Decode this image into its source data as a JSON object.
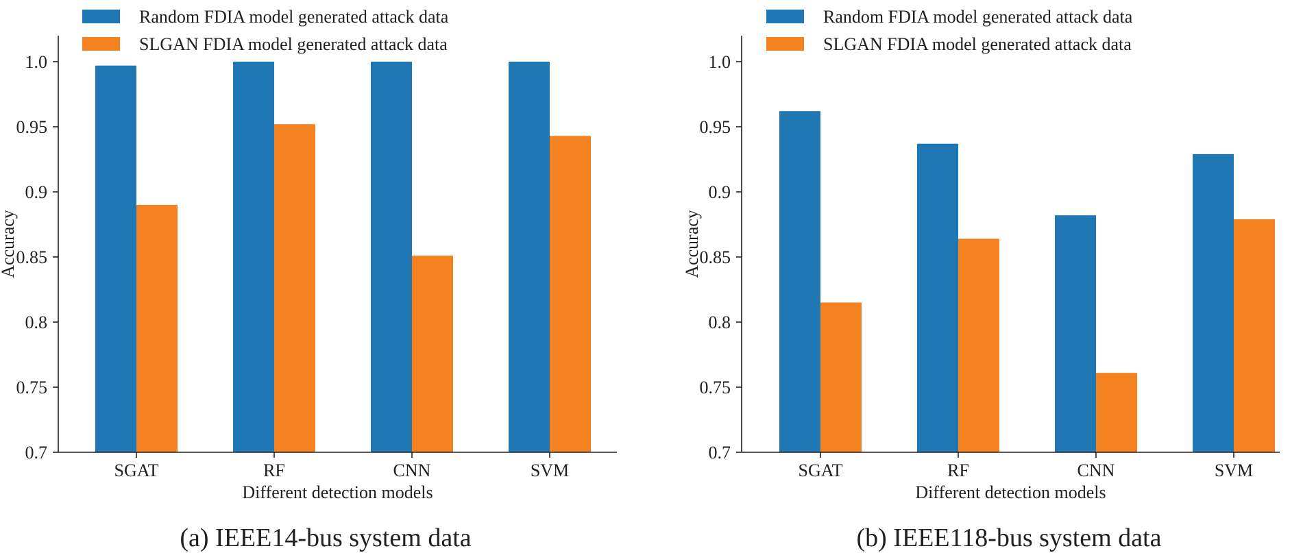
{
  "colors": {
    "random": "#1f77b4",
    "slgan": "#f58220",
    "text": "#231f20"
  },
  "chart_data": [
    {
      "type": "bar",
      "caption": "(a) IEEE14-bus system data",
      "xlabel": "Different detection models",
      "ylabel": "Accuracy",
      "ylim": [
        0.7,
        1.02
      ],
      "yticks": [
        {
          "value": 0.7,
          "label": "0.7"
        },
        {
          "value": 0.75,
          "label": "0.75"
        },
        {
          "value": 0.8,
          "label": "0.8"
        },
        {
          "value": 0.85,
          "label": "0.85"
        },
        {
          "value": 0.9,
          "label": "0.9"
        },
        {
          "value": 0.95,
          "label": "0.95"
        },
        {
          "value": 1.0,
          "label": "1.0"
        }
      ],
      "categories": [
        "SGAT",
        "RF",
        "CNN",
        "SVM"
      ],
      "legend_position": "top-left",
      "series": [
        {
          "name": "Random FDIA model generated attack data",
          "color_key": "random",
          "values": [
            0.997,
            1.0,
            1.0,
            1.0
          ]
        },
        {
          "name": "SLGAN FDIA model generated attack data",
          "color_key": "slgan",
          "values": [
            0.89,
            0.952,
            0.851,
            0.943
          ]
        }
      ]
    },
    {
      "type": "bar",
      "caption": "(b) IEEE118-bus system data",
      "xlabel": "Different detection models",
      "ylabel": "Accuracy",
      "ylim": [
        0.7,
        1.02
      ],
      "yticks": [
        {
          "value": 0.7,
          "label": "0.7"
        },
        {
          "value": 0.75,
          "label": "0.75"
        },
        {
          "value": 0.8,
          "label": "0.8"
        },
        {
          "value": 0.85,
          "label": "0.85"
        },
        {
          "value": 0.9,
          "label": "0.9"
        },
        {
          "value": 0.95,
          "label": "0.95"
        },
        {
          "value": 1.0,
          "label": "1.0"
        }
      ],
      "categories": [
        "SGAT",
        "RF",
        "CNN",
        "SVM"
      ],
      "legend_position": "top-left",
      "series": [
        {
          "name": "Random FDIA model generated attack data",
          "color_key": "random",
          "values": [
            0.962,
            0.937,
            0.882,
            0.929
          ]
        },
        {
          "name": "SLGAN FDIA model generated attack data",
          "color_key": "slgan",
          "values": [
            0.815,
            0.864,
            0.761,
            0.879
          ]
        }
      ]
    }
  ]
}
